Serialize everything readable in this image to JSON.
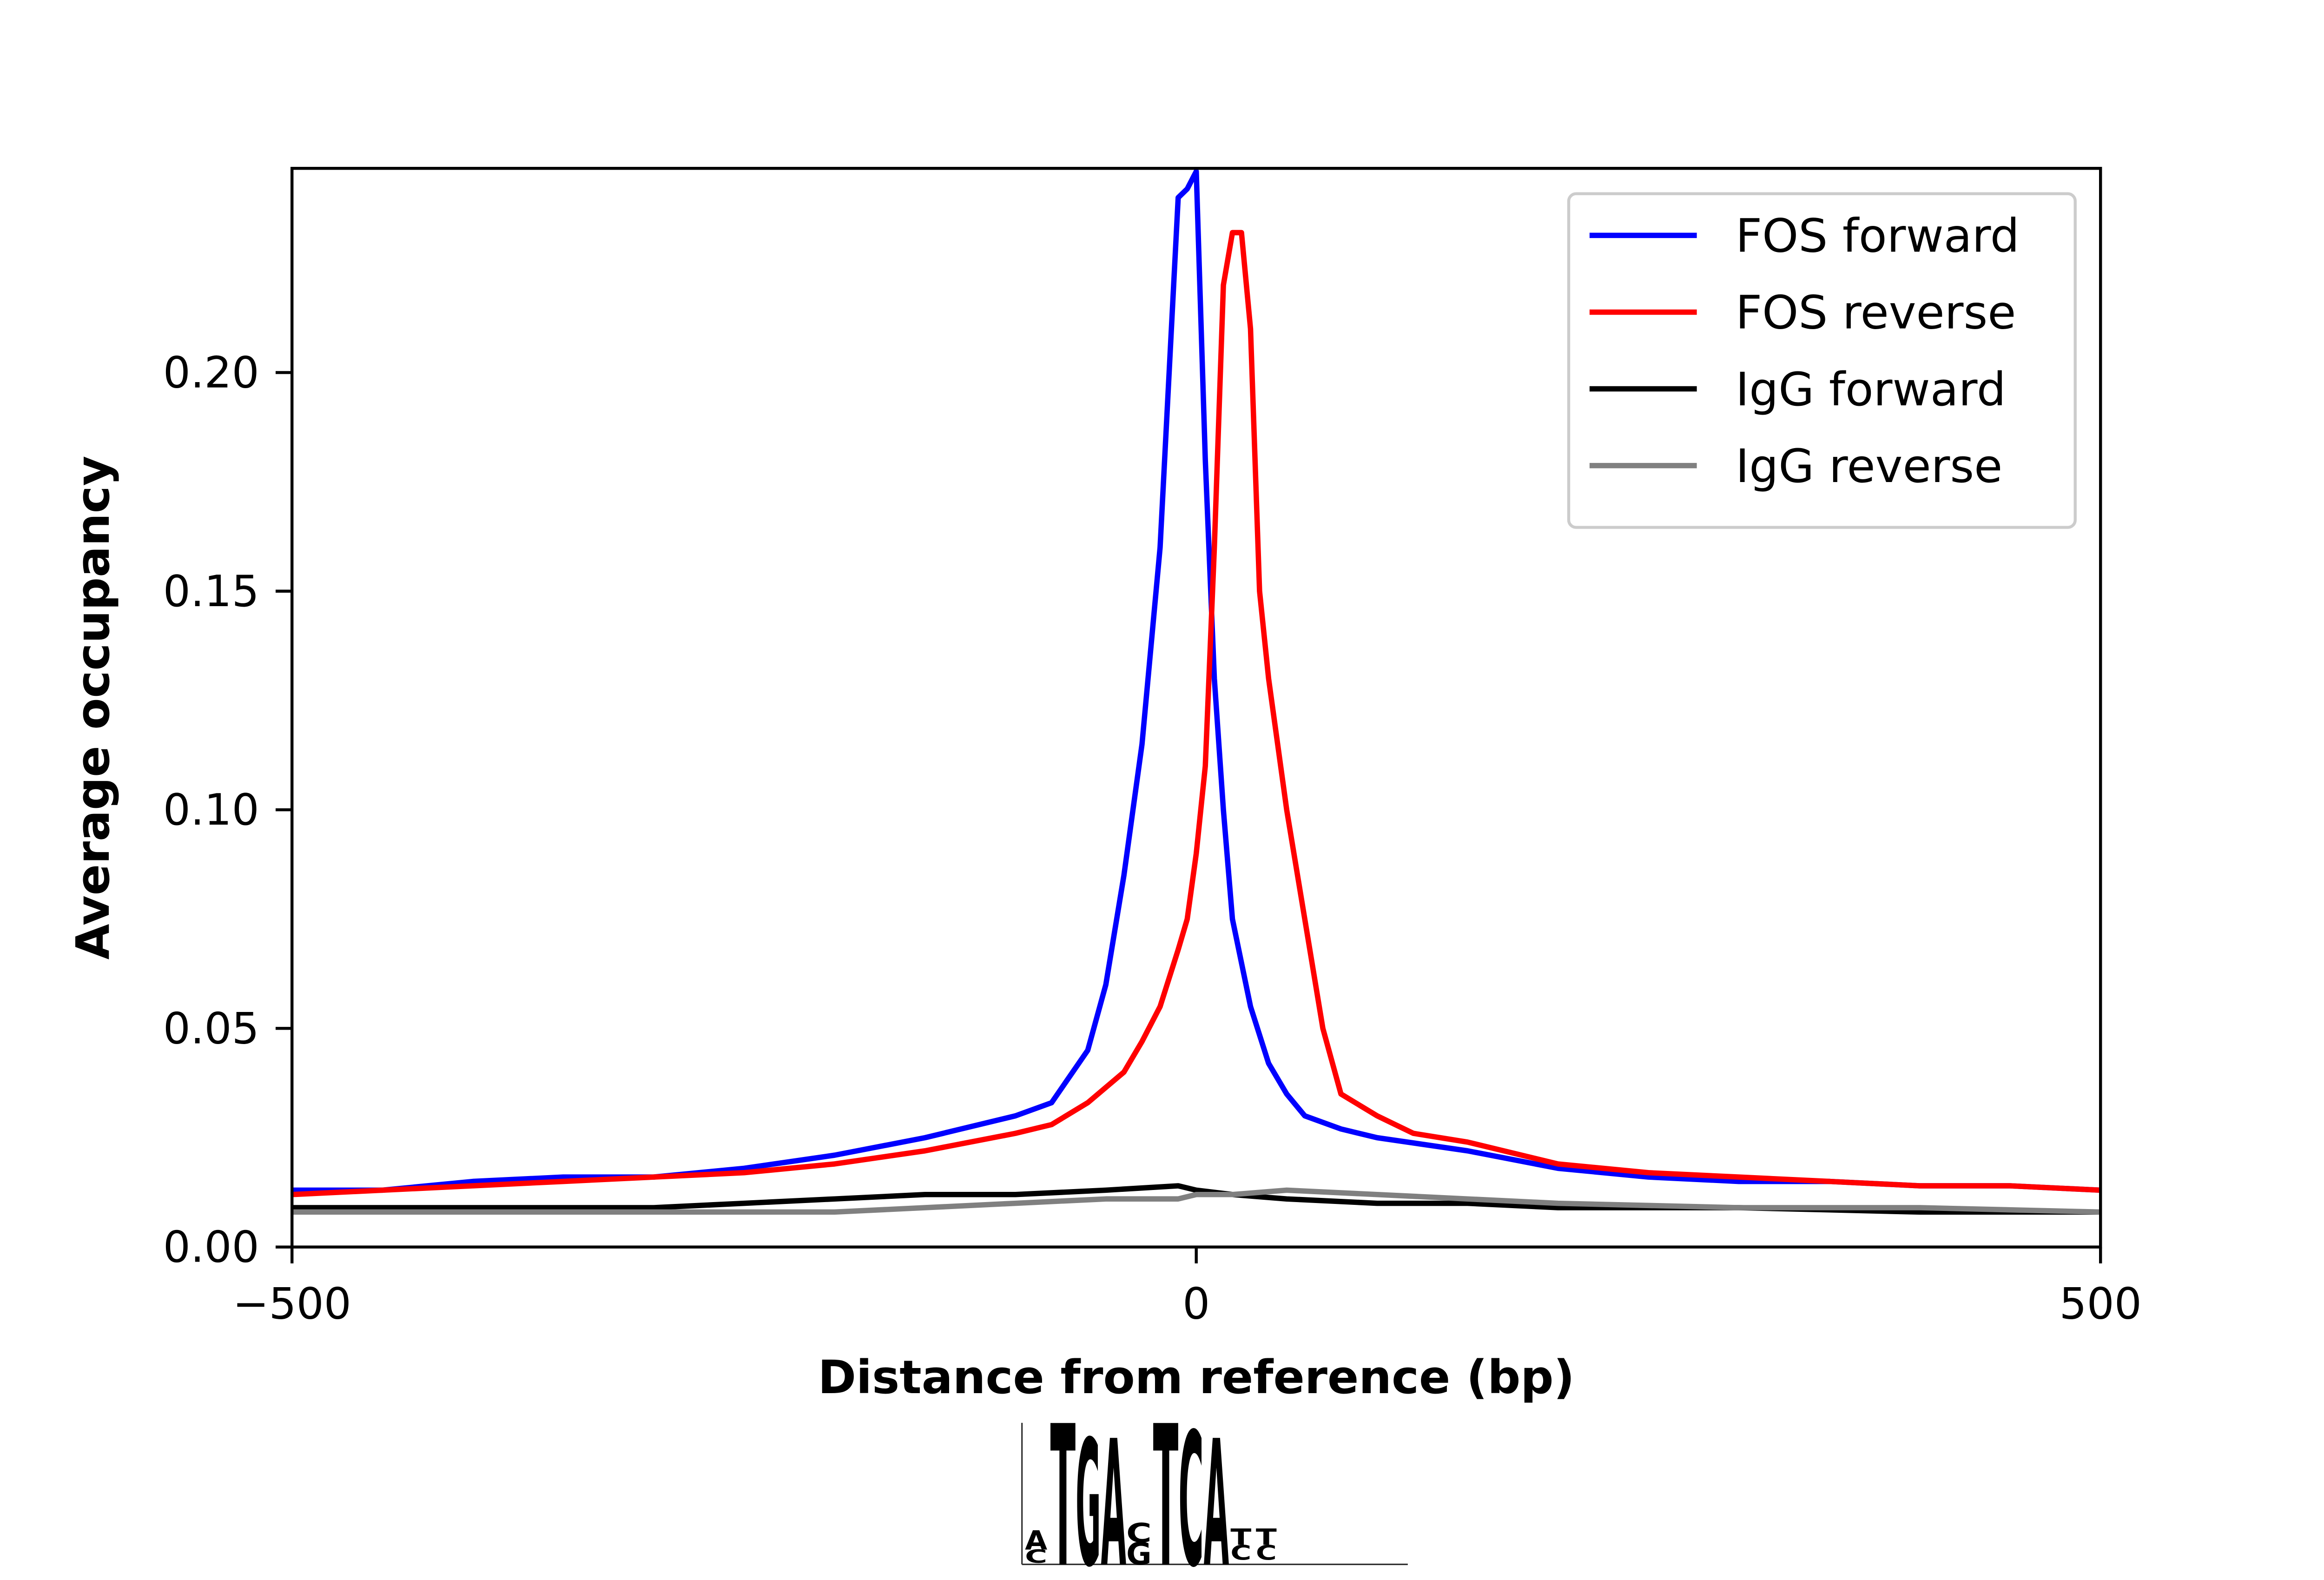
{
  "chart_data": {
    "type": "line",
    "xlabel": "Distance from reference (bp)",
    "ylabel": "Average occupancy",
    "xlim": [
      -500,
      500
    ],
    "ylim": [
      0,
      0.2467
    ],
    "xticks": [
      {
        "value": -500,
        "label": "−500"
      },
      0,
      500
    ],
    "yticks": [
      {
        "value": 0,
        "label": "0.00"
      },
      {
        "value": 0.05,
        "label": "0.05"
      },
      {
        "value": 0.1,
        "label": "0.10"
      },
      {
        "value": 0.15,
        "label": "0.15"
      },
      {
        "value": 0.2,
        "label": "0.20"
      }
    ],
    "legend": "upper right",
    "series": [
      {
        "name": "FOS forward",
        "color": "#0000ff",
        "x": [
          -500,
          -450,
          -400,
          -350,
          -300,
          -250,
          -200,
          -150,
          -100,
          -80,
          -60,
          -50,
          -40,
          -30,
          -20,
          -15,
          -10,
          -5,
          0,
          5,
          10,
          15,
          20,
          30,
          40,
          50,
          60,
          80,
          100,
          150,
          200,
          250,
          300,
          350,
          400,
          450,
          500
        ],
        "values": [
          0.013,
          0.013,
          0.015,
          0.016,
          0.016,
          0.018,
          0.021,
          0.025,
          0.03,
          0.033,
          0.045,
          0.06,
          0.085,
          0.115,
          0.16,
          0.2,
          0.24,
          0.242,
          0.246,
          0.18,
          0.13,
          0.1,
          0.075,
          0.055,
          0.042,
          0.035,
          0.03,
          0.027,
          0.025,
          0.022,
          0.018,
          0.016,
          0.015,
          0.015,
          0.014,
          0.014,
          0.013
        ]
      },
      {
        "name": "FOS reverse",
        "color": "#ff0000",
        "x": [
          -500,
          -450,
          -400,
          -350,
          -300,
          -250,
          -200,
          -150,
          -100,
          -80,
          -60,
          -40,
          -30,
          -20,
          -10,
          -5,
          0,
          5,
          10,
          15,
          20,
          25,
          30,
          35,
          40,
          50,
          60,
          70,
          80,
          100,
          120,
          150,
          200,
          250,
          300,
          350,
          400,
          450,
          500
        ],
        "values": [
          0.012,
          0.013,
          0.014,
          0.015,
          0.016,
          0.017,
          0.019,
          0.022,
          0.026,
          0.028,
          0.033,
          0.04,
          0.047,
          0.055,
          0.068,
          0.075,
          0.09,
          0.11,
          0.16,
          0.22,
          0.232,
          0.232,
          0.21,
          0.15,
          0.13,
          0.1,
          0.075,
          0.05,
          0.035,
          0.03,
          0.026,
          0.024,
          0.019,
          0.017,
          0.016,
          0.015,
          0.014,
          0.014,
          0.013
        ]
      },
      {
        "name": "IgG forward",
        "color": "#000000",
        "x": [
          -500,
          -400,
          -300,
          -250,
          -200,
          -150,
          -100,
          -50,
          -10,
          0,
          20,
          50,
          100,
          150,
          200,
          300,
          400,
          500
        ],
        "values": [
          0.009,
          0.009,
          0.009,
          0.01,
          0.011,
          0.012,
          0.012,
          0.013,
          0.014,
          0.013,
          0.012,
          0.011,
          0.01,
          0.01,
          0.009,
          0.009,
          0.008,
          0.008
        ]
      },
      {
        "name": "IgG reverse",
        "color": "#808080",
        "x": [
          -500,
          -400,
          -300,
          -200,
          -150,
          -100,
          -50,
          -10,
          0,
          20,
          50,
          100,
          150,
          200,
          300,
          400,
          500
        ],
        "values": [
          0.008,
          0.008,
          0.008,
          0.008,
          0.009,
          0.01,
          0.011,
          0.011,
          0.012,
          0.012,
          0.013,
          0.012,
          0.011,
          0.01,
          0.009,
          0.009,
          0.008
        ]
      }
    ]
  },
  "motif_logo": {
    "letters": [
      "A",
      "C",
      "T",
      "G",
      "A",
      "C",
      "G",
      "T",
      "C",
      "A",
      "T",
      "C",
      "T",
      "C"
    ],
    "colors": [
      "#d62728",
      "#1f3fbf",
      "#138a13",
      "#f5a800",
      "#d62728",
      "#1f3fbf",
      "#f5a800",
      "#138a13",
      "#1f3fbf",
      "#d62728",
      "#138a13",
      "#1f3fbf",
      "#138a13",
      "#1f3fbf"
    ]
  }
}
